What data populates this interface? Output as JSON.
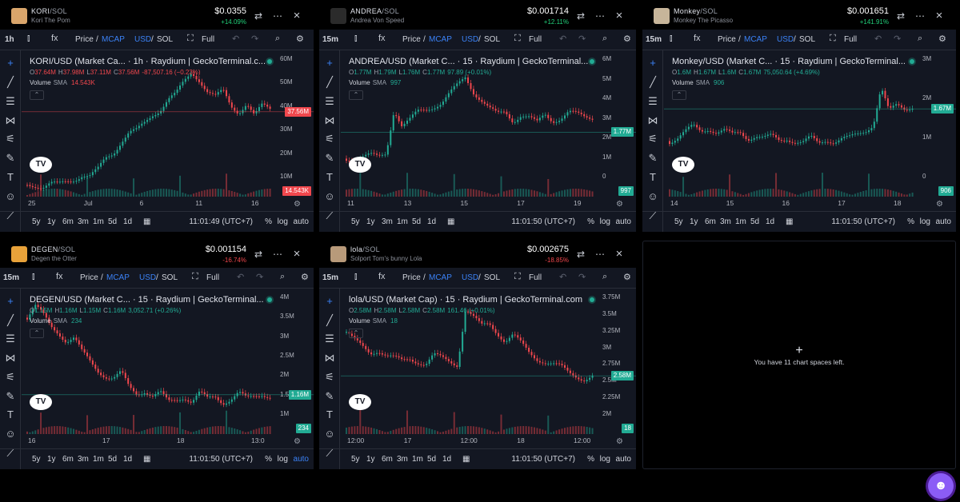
{
  "panels": [
    {
      "symbol": "KORI",
      "pair": "/SOL",
      "name": "Kori The Pom",
      "avatar_color": "#d9a56b",
      "price": "$0.0355",
      "change": "+14.09%",
      "change_dir": "up",
      "timeframe": "1h",
      "toolbar": {
        "price": "Price",
        "sep1": "/",
        "mcap": "MCAP",
        "usd": "USD",
        "sep2": "/",
        "sol": "SOL",
        "full": "Full"
      },
      "legend_title": "KORI/USD (Market Ca... · 1h · Raydium | GeckoTerminal.c...",
      "ohlc": [
        {
          "k": "O",
          "v": "37.64M"
        },
        {
          "k": "H",
          "v": "37.98M"
        },
        {
          "k": "L",
          "v": "37.11M"
        },
        {
          "k": "C",
          "v": "37.56M"
        },
        {
          "k": "",
          "v": "-87,507.16 (−0.23%)"
        }
      ],
      "ohlc_color": "#f0474d",
      "volume_label": "Volume",
      "sma_label": "SMA",
      "volume_value": "14.543K",
      "volume_color": "#f0474d",
      "y_ticks": [
        "60M",
        "50M",
        "40M",
        "30M",
        "20M",
        "10M"
      ],
      "price_label": "37.56M",
      "price_label_color": "#f0474d",
      "vol_label": "14.543K",
      "vol_label_color": "#f0474d",
      "x_ticks": [
        "25",
        "Jul",
        "6",
        "11",
        "16"
      ],
      "bottom": {
        "ranges": [
          "5y",
          "1y",
          "6m",
          "3m",
          "1m",
          "5d",
          "1d"
        ],
        "time": "11:01:49 (UTC+7)",
        "pct": "%",
        "log": "log",
        "auto": "auto"
      }
    },
    {
      "symbol": "ANDREA",
      "pair": "/SOL",
      "name": "Andrea Von Speed",
      "avatar_color": "#2b2b2b",
      "price": "$0.001714",
      "change": "+12.11%",
      "change_dir": "up",
      "timeframe": "15m",
      "toolbar": {
        "price": "Price",
        "sep1": "/",
        "mcap": "MCAP",
        "usd": "USD",
        "sep2": "/",
        "sol": "SOL",
        "full": "Full"
      },
      "legend_title": "ANDREA/USD (Market C... · 15 · Raydium | GeckoTerminal...",
      "ohlc": [
        {
          "k": "O",
          "v": "1.77M"
        },
        {
          "k": "H",
          "v": "1.79M"
        },
        {
          "k": "L",
          "v": "1.76M"
        },
        {
          "k": "C",
          "v": "1.77M"
        },
        {
          "k": "",
          "v": "97.89 (+0.01%)"
        }
      ],
      "ohlc_color": "#22ab94",
      "volume_label": "Volume",
      "sma_label": "SMA",
      "volume_value": "997",
      "volume_color": "#22ab94",
      "y_ticks": [
        "6M",
        "5M",
        "4M",
        "3M",
        "2M",
        "1M",
        "0"
      ],
      "price_label": "1.77M",
      "price_label_color": "#22ab94",
      "vol_label": "997",
      "vol_label_color": "#22ab94",
      "x_ticks": [
        "11",
        "13",
        "15",
        "17",
        "19"
      ],
      "bottom": {
        "ranges": [
          "5y",
          "1y",
          "3m",
          "1m",
          "5d",
          "1d"
        ],
        "time": "11:01:50 (UTC+7)",
        "pct": "%",
        "log": "log",
        "auto": "auto"
      }
    },
    {
      "symbol": "Monkey",
      "pair": "/SOL",
      "name": "Monkey The Picasso",
      "avatar_color": "#c7b59a",
      "price": "$0.001651",
      "change": "+141.91%",
      "change_dir": "up",
      "timeframe": "15m",
      "toolbar": {
        "price": "Price",
        "sep1": "/",
        "mcap": "MCAP",
        "usd": "USD",
        "sep2": "/",
        "sol": "SOL",
        "full": "Full"
      },
      "legend_title": "Monkey/USD (Market C... · 15 · Raydium | GeckoTerminal...",
      "ohlc": [
        {
          "k": "O",
          "v": "1.6M"
        },
        {
          "k": "H",
          "v": "1.67M"
        },
        {
          "k": "L",
          "v": "1.6M"
        },
        {
          "k": "C",
          "v": "1.67M"
        },
        {
          "k": "",
          "v": "75,050.64 (+4.69%)"
        }
      ],
      "ohlc_color": "#22ab94",
      "volume_label": "Volume",
      "sma_label": "SMA",
      "volume_value": "906",
      "volume_color": "#22ab94",
      "y_ticks": [
        "3M",
        "2M",
        "1M",
        "0"
      ],
      "price_label": "1.67M",
      "price_label_color": "#22ab94",
      "vol_label": "906",
      "vol_label_color": "#22ab94",
      "x_ticks": [
        "14",
        "15",
        "16",
        "17",
        "18"
      ],
      "bottom": {
        "ranges": [
          "5y",
          "1y",
          "6m",
          "3m",
          "1m",
          "5d",
          "1d"
        ],
        "time": "11:01:50 (UTC+7)",
        "pct": "%",
        "log": "log",
        "auto": "auto"
      }
    },
    {
      "symbol": "DEGEN",
      "pair": "/SOL",
      "name": "Degen the Otter",
      "avatar_color": "#e8a23a",
      "price": "$0.001154",
      "change": "-16.74%",
      "change_dir": "dn",
      "timeframe": "15m",
      "toolbar": {
        "price": "Price",
        "sep1": "/",
        "mcap": "MCAP",
        "usd": "USD",
        "sep2": "/",
        "sol": "SOL",
        "full": "Full"
      },
      "legend_title": "DEGEN/USD (Market C... · 15 · Raydium | GeckoTerminal...",
      "ohlc": [
        {
          "k": "O",
          "v": "1.15M"
        },
        {
          "k": "H",
          "v": "1.16M"
        },
        {
          "k": "L",
          "v": "1.15M"
        },
        {
          "k": "C",
          "v": "1.16M"
        },
        {
          "k": "",
          "v": "3,052.71 (+0.26%)"
        }
      ],
      "ohlc_color": "#22ab94",
      "volume_label": "Volume",
      "sma_label": "SMA",
      "volume_value": "234",
      "volume_color": "#22ab94",
      "y_ticks": [
        "4M",
        "3.5M",
        "3M",
        "2.5M",
        "2M",
        "1.5M",
        "1M"
      ],
      "price_label": "1.16M",
      "price_label_color": "#22ab94",
      "vol_label": "234",
      "vol_label_color": "#22ab94",
      "x_ticks": [
        "16",
        "17",
        "18",
        "13:0"
      ],
      "bottom": {
        "ranges": [
          "5y",
          "1y",
          "6m",
          "3m",
          "1m",
          "5d",
          "1d"
        ],
        "time": "11:01:50 (UTC+7)",
        "pct": "%",
        "log": "log",
        "auto": "auto"
      }
    },
    {
      "symbol": "lola",
      "pair": "/SOL",
      "name": "Solport Tom's bunny Lola",
      "avatar_color": "#b89a7a",
      "price": "$0.002675",
      "change": "-18.85%",
      "change_dir": "dn",
      "timeframe": "15m",
      "toolbar": {
        "price": "Price",
        "sep1": "/",
        "mcap": "MCAP",
        "usd": "USD",
        "sep2": "/",
        "sol": "SOL",
        "full": "Full"
      },
      "legend_title": "lola/USD (Market Cap) · 15 · Raydium | GeckoTerminal.com",
      "ohlc": [
        {
          "k": "O",
          "v": "2.58M"
        },
        {
          "k": "H",
          "v": "2.58M"
        },
        {
          "k": "L",
          "v": "2.58M"
        },
        {
          "k": "C",
          "v": "2.58M"
        },
        {
          "k": "",
          "v": "161.46 (+0.01%)"
        }
      ],
      "ohlc_color": "#22ab94",
      "volume_label": "Volume",
      "sma_label": "SMA",
      "volume_value": "18",
      "volume_color": "#22ab94",
      "y_ticks": [
        "3.75M",
        "3.5M",
        "3.25M",
        "3M",
        "2.75M",
        "2.5M",
        "2.25M",
        "2M"
      ],
      "price_label": "2.58M",
      "price_label_color": "#22ab94",
      "vol_label": "18",
      "vol_label_color": "#22ab94",
      "x_ticks": [
        "12:00",
        "17",
        "12:00",
        "18",
        "12:00"
      ],
      "bottom": {
        "ranges": [
          "5y",
          "1y",
          "6m",
          "3m",
          "1m",
          "5d",
          "1d"
        ],
        "time": "11:01:50 (UTC+7)",
        "pct": "%",
        "log": "log",
        "auto": "auto"
      }
    }
  ],
  "empty_slot": {
    "plus": "+",
    "text": "You have 11 chart spaces left."
  },
  "icons": {
    "close": "×",
    "more": "⋯",
    "swap": "⇄",
    "indicator": "fx",
    "undo": "↶",
    "redo": "↷",
    "settings": "⚙",
    "helper": "assistant-icon"
  }
}
